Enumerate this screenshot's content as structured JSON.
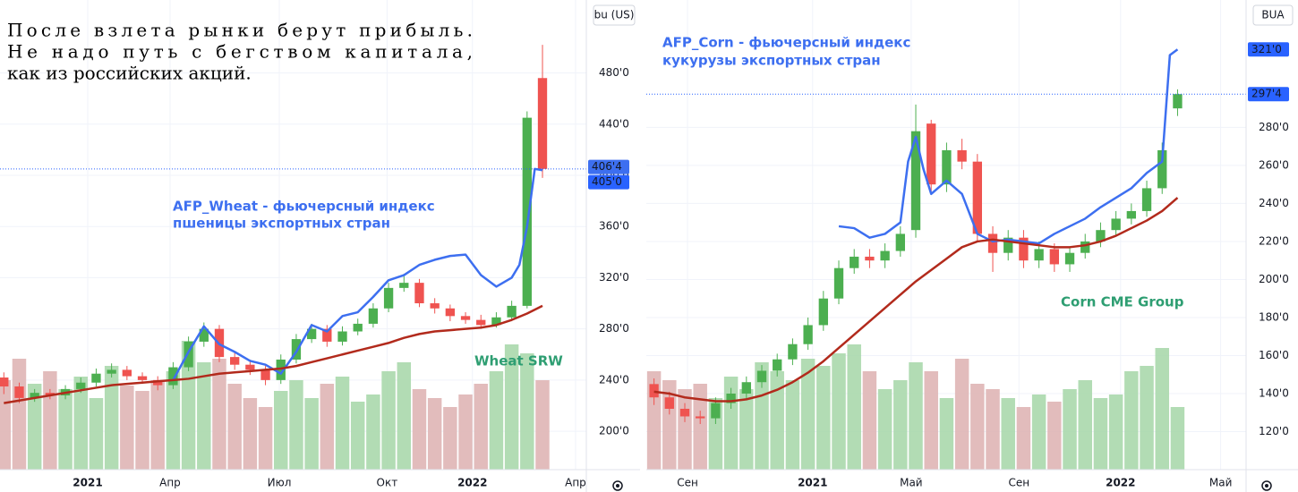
{
  "note": [
    "После взлета рынки берут прибыль.",
    "Не надо путь с бегством капитала,",
    "как из российских акций."
  ],
  "chart_data": [
    {
      "type": "candlestick",
      "unit_label": "bu (US)",
      "xlim": [
        -0.5,
        75.7
      ],
      "xticks": [
        {
          "value": 10.9,
          "label": "2021"
        },
        {
          "value": 21.6,
          "label": "Апр"
        },
        {
          "value": 35.8,
          "label": "Июл"
        },
        {
          "value": 49.8,
          "label": "Окт"
        },
        {
          "value": 60.9,
          "label": "2022"
        },
        {
          "value": 74.3,
          "label": "Апр"
        }
      ],
      "ylim": [
        170,
        537
      ],
      "yticks": [
        {
          "value": 200,
          "label": "200'0"
        },
        {
          "value": 240,
          "label": "240'0"
        },
        {
          "value": 280,
          "label": "280'0"
        },
        {
          "value": 320,
          "label": "320'0"
        },
        {
          "value": 360,
          "label": "360'0"
        },
        {
          "value": 400,
          "label": "400'0"
        },
        {
          "value": 440,
          "label": "440'0"
        },
        {
          "value": 480,
          "label": "480'0"
        }
      ],
      "grid": true,
      "up_color": "#4caf50",
      "down_color": "#ef5350",
      "volume_up_color": "#a5d6a7",
      "volume_down_color": "#ddb0b0",
      "candles": {
        "x": [
          0,
          2,
          4,
          6,
          8,
          10,
          12,
          14,
          16,
          18,
          20,
          22,
          24,
          26,
          28,
          30,
          32,
          34,
          36,
          38,
          40,
          42,
          44,
          46,
          48,
          50,
          52,
          54,
          56,
          58,
          60,
          62,
          64,
          66,
          68,
          70
        ],
        "open": [
          242,
          235,
          226,
          230,
          228,
          233,
          238,
          245,
          248,
          243,
          240,
          236,
          250,
          270,
          280,
          258,
          252,
          248,
          240,
          256,
          272,
          280,
          270,
          278,
          284,
          296,
          312,
          316,
          300,
          296,
          290,
          287,
          283,
          289,
          298,
          476
        ],
        "high": [
          246,
          238,
          233,
          233,
          236,
          242,
          249,
          253,
          251,
          246,
          243,
          254,
          274,
          285,
          283,
          262,
          256,
          251,
          260,
          276,
          284,
          283,
          282,
          288,
          300,
          316,
          323,
          319,
          304,
          299,
          293,
          291,
          293,
          302,
          450,
          502
        ],
        "low": [
          229,
          222,
          223,
          225,
          225,
          230,
          235,
          242,
          240,
          237,
          232,
          233,
          247,
          266,
          254,
          248,
          244,
          236,
          237,
          253,
          269,
          266,
          267,
          275,
          281,
          293,
          309,
          297,
          292,
          286,
          284,
          280,
          281,
          286,
          296,
          398
        ],
        "close": [
          235,
          226,
          230,
          228,
          233,
          238,
          245,
          248,
          243,
          240,
          236,
          250,
          270,
          280,
          258,
          252,
          248,
          240,
          256,
          272,
          280,
          270,
          278,
          284,
          296,
          312,
          316,
          300,
          296,
          290,
          287,
          283,
          289,
          298,
          445,
          405
        ]
      },
      "volume_ylim": [
        0,
        100
      ],
      "volume": [
        50,
        62,
        48,
        55,
        45,
        52,
        40,
        58,
        47,
        44,
        50,
        55,
        72,
        60,
        62,
        48,
        40,
        35,
        44,
        50,
        40,
        48,
        52,
        38,
        42,
        55,
        60,
        45,
        40,
        35,
        42,
        48,
        55,
        70,
        65,
        50
      ],
      "series": [
        {
          "color": "#3d6ff0",
          "x": [
            22,
            24,
            26,
            28,
            30,
            32,
            34,
            36,
            38,
            40,
            42,
            44,
            46,
            48,
            50,
            52,
            54,
            56,
            58,
            60,
            62,
            64,
            66,
            67,
            68,
            69,
            70
          ],
          "values": [
            240,
            262,
            282,
            268,
            262,
            255,
            252,
            245,
            262,
            283,
            278,
            290,
            293,
            305,
            318,
            322,
            330,
            334,
            337,
            338,
            322,
            313,
            320,
            330,
            360,
            405,
            404
          ]
        },
        {
          "color": "#b22a1c",
          "x": [
            0,
            2,
            4,
            6,
            8,
            10,
            12,
            14,
            16,
            18,
            20,
            22,
            24,
            26,
            28,
            30,
            32,
            34,
            36,
            38,
            40,
            42,
            44,
            46,
            48,
            50,
            52,
            54,
            56,
            58,
            60,
            62,
            64,
            66,
            68,
            70
          ],
          "values": [
            222,
            224,
            226,
            228,
            230,
            232,
            234,
            236,
            237,
            238,
            239,
            240,
            241,
            243,
            245,
            246,
            247,
            248,
            249,
            251,
            254,
            257,
            260,
            263,
            266,
            269,
            273,
            276,
            278,
            279,
            280,
            281,
            283,
            287,
            292,
            298
          ]
        }
      ],
      "price_labels": [
        {
          "value": 406.5,
          "label": "406'4",
          "color": "#3d6ff0"
        },
        {
          "value": 405,
          "label": "405'0",
          "color": "#2962ff"
        }
      ],
      "annotations": [
        {
          "text": "AFP_Wheat - фьючерсный индекс",
          "color": "#3d6ff0"
        },
        {
          "text": "пшеницы экспортных стран",
          "color": "#3d6ff0"
        },
        {
          "text": "Wheat SRW",
          "color": "#2e9e72"
        }
      ]
    },
    {
      "type": "candlestick",
      "unit_label": "BUA",
      "xlim": [
        0,
        77.9
      ],
      "xticks": [
        {
          "value": 5.35,
          "label": "Сен"
        },
        {
          "value": 21.6,
          "label": "2021"
        },
        {
          "value": 34.4,
          "label": "Май"
        },
        {
          "value": 48.4,
          "label": "Сен"
        },
        {
          "value": 61.6,
          "label": "2022"
        },
        {
          "value": 74.6,
          "label": "Май"
        }
      ],
      "ylim": [
        100,
        347
      ],
      "yticks": [
        {
          "value": 120,
          "label": "120'0"
        },
        {
          "value": 140,
          "label": "140'0"
        },
        {
          "value": 160,
          "label": "160'0"
        },
        {
          "value": 180,
          "label": "180'0"
        },
        {
          "value": 200,
          "label": "200'0"
        },
        {
          "value": 220,
          "label": "220'0"
        },
        {
          "value": 240,
          "label": "240'0"
        },
        {
          "value": 260,
          "label": "260'0"
        },
        {
          "value": 280,
          "label": "280'0"
        }
      ],
      "grid": true,
      "up_color": "#4caf50",
      "down_color": "#ef5350",
      "volume_up_color": "#a5d6a7",
      "volume_down_color": "#ddb0b0",
      "candles": {
        "x": [
          1,
          3,
          5,
          7,
          9,
          11,
          13,
          15,
          17,
          19,
          21,
          23,
          25,
          27,
          29,
          31,
          33,
          35,
          37,
          39,
          41,
          43,
          45,
          47,
          49,
          51,
          53,
          55,
          57,
          59,
          61,
          63,
          65,
          67,
          69
        ],
        "open": [
          145,
          138,
          132,
          128,
          127,
          135,
          140,
          146,
          152,
          158,
          166,
          176,
          190,
          206,
          212,
          210,
          215,
          226,
          282,
          250,
          268,
          262,
          224,
          214,
          222,
          210,
          216,
          208,
          214,
          220,
          226,
          232,
          236,
          248,
          290
        ],
        "high": [
          148,
          141,
          135,
          131,
          138,
          143,
          149,
          155,
          161,
          169,
          180,
          194,
          210,
          216,
          216,
          219,
          228,
          292,
          284,
          272,
          274,
          266,
          228,
          226,
          226,
          220,
          219,
          217,
          224,
          230,
          236,
          240,
          252,
          272,
          300
        ],
        "low": [
          134,
          129,
          125,
          124,
          124,
          132,
          137,
          143,
          149,
          155,
          163,
          173,
          187,
          203,
          206,
          206,
          212,
          222,
          246,
          246,
          258,
          220,
          204,
          210,
          206,
          206,
          204,
          204,
          211,
          217,
          223,
          229,
          233,
          245,
          286
        ],
        "close": [
          138,
          132,
          128,
          127,
          135,
          140,
          146,
          152,
          158,
          166,
          176,
          190,
          206,
          212,
          210,
          215,
          224,
          278,
          250,
          268,
          262,
          224,
          214,
          222,
          210,
          216,
          208,
          214,
          220,
          226,
          232,
          236,
          248,
          268,
          297.5
        ]
      },
      "volume_ylim": [
        0,
        100
      ],
      "volume": [
        55,
        50,
        45,
        48,
        40,
        52,
        45,
        60,
        55,
        50,
        62,
        58,
        65,
        70,
        55,
        45,
        50,
        60,
        55,
        40,
        62,
        48,
        45,
        40,
        35,
        42,
        38,
        45,
        50,
        40,
        42,
        55,
        58,
        68,
        35
      ],
      "series": [
        {
          "color": "#3d6ff0",
          "x": [
            25,
            27,
            29,
            31,
            33,
            34,
            35,
            36,
            37,
            39,
            41,
            43,
            45,
            47,
            49,
            51,
            53,
            55,
            57,
            59,
            61,
            63,
            65,
            67,
            68,
            69
          ],
          "values": [
            228,
            227,
            222,
            224,
            230,
            262,
            275,
            258,
            245,
            252,
            245,
            224,
            220,
            221,
            220,
            219,
            224,
            228,
            232,
            238,
            243,
            248,
            256,
            262,
            318,
            321
          ]
        },
        {
          "color": "#b22a1c",
          "x": [
            1,
            3,
            5,
            7,
            9,
            11,
            13,
            15,
            17,
            19,
            21,
            23,
            25,
            27,
            29,
            31,
            33,
            35,
            37,
            39,
            41,
            43,
            45,
            47,
            49,
            51,
            53,
            55,
            57,
            59,
            61,
            63,
            65,
            67,
            69
          ],
          "values": [
            141,
            140,
            138,
            137,
            136,
            136,
            137,
            139,
            142,
            146,
            151,
            157,
            164,
            171,
            178,
            185,
            192,
            199,
            205,
            211,
            217,
            220,
            221,
            220,
            219,
            218,
            217,
            217,
            218,
            220,
            223,
            227,
            231,
            236,
            243
          ]
        }
      ],
      "price_labels": [
        {
          "value": 321,
          "label": "321'0",
          "color": "#2962ff"
        },
        {
          "value": 297.5,
          "label": "297'4",
          "color": "#2962ff"
        }
      ],
      "annotations": [
        {
          "text": "AFP_Corn - фьючерсный индекс",
          "color": "#3d6ff0"
        },
        {
          "text": "кукурузы экспортных стран",
          "color": "#3d6ff0"
        },
        {
          "text": "Corn CME Group",
          "color": "#2e9e72"
        }
      ]
    }
  ]
}
